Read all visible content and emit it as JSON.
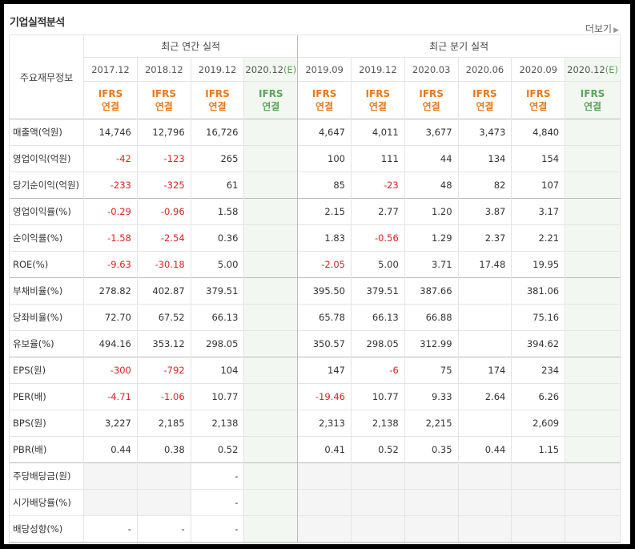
{
  "title": "기업실적분석",
  "more_label": "더보기",
  "header": {
    "row_label": "주요재무정보",
    "annual_label": "최근 연간 실적",
    "quarter_label": "최근 분기 실적",
    "annual_dates": [
      "2017.12",
      "2018.12",
      "2019.12",
      "2020.12"
    ],
    "quarter_dates": [
      "2019.09",
      "2019.12",
      "2020.03",
      "2020.06",
      "2020.09",
      "2020.12"
    ],
    "estimate_mark": "(E)",
    "ifrs_top": "IFRS",
    "ifrs_bottom": "연결"
  },
  "rows": [
    {
      "label": "매출액(억원)",
      "values": [
        "14,746",
        "12,796",
        "16,726",
        "",
        "4,647",
        "4,011",
        "3,677",
        "3,473",
        "4,840",
        ""
      ]
    },
    {
      "label": "영업이익(억원)",
      "values": [
        "-42",
        "-123",
        "265",
        "",
        "100",
        "111",
        "44",
        "134",
        "154",
        ""
      ]
    },
    {
      "label": "당기순이익(억원)",
      "values": [
        "-233",
        "-325",
        "61",
        "",
        "85",
        "-23",
        "48",
        "82",
        "107",
        ""
      ]
    },
    {
      "label": "영업이익률(%)",
      "values": [
        "-0.29",
        "-0.96",
        "1.58",
        "",
        "2.15",
        "2.77",
        "1.20",
        "3.87",
        "3.17",
        ""
      ]
    },
    {
      "label": "순이익률(%)",
      "values": [
        "-1.58",
        "-2.54",
        "0.36",
        "",
        "1.83",
        "-0.56",
        "1.29",
        "2.37",
        "2.21",
        ""
      ]
    },
    {
      "label": "ROE(%)",
      "values": [
        "-9.63",
        "-30.18",
        "5.00",
        "",
        "-2.05",
        "5.00",
        "3.71",
        "17.48",
        "19.95",
        ""
      ]
    },
    {
      "label": "부채비율(%)",
      "values": [
        "278.82",
        "402.87",
        "379.51",
        "",
        "395.50",
        "379.51",
        "387.66",
        "",
        "381.06",
        ""
      ]
    },
    {
      "label": "당좌비율(%)",
      "values": [
        "72.70",
        "67.52",
        "66.13",
        "",
        "65.78",
        "66.13",
        "66.88",
        "",
        "75.16",
        ""
      ]
    },
    {
      "label": "유보율(%)",
      "values": [
        "494.16",
        "353.12",
        "298.05",
        "",
        "350.57",
        "298.05",
        "312.99",
        "",
        "394.62",
        ""
      ]
    },
    {
      "label": "EPS(원)",
      "values": [
        "-300",
        "-792",
        "104",
        "",
        "147",
        "-6",
        "75",
        "174",
        "234",
        ""
      ]
    },
    {
      "label": "PER(배)",
      "values": [
        "-4.71",
        "-1.06",
        "10.77",
        "",
        "-19.46",
        "10.77",
        "9.33",
        "2.64",
        "6.26",
        ""
      ]
    },
    {
      "label": "BPS(원)",
      "values": [
        "3,227",
        "2,185",
        "2,138",
        "",
        "2,313",
        "2,138",
        "2,215",
        "",
        "2,609",
        ""
      ]
    },
    {
      "label": "PBR(배)",
      "values": [
        "0.44",
        "0.38",
        "0.52",
        "",
        "0.41",
        "0.52",
        "0.35",
        "0.44",
        "1.15",
        ""
      ]
    },
    {
      "label": "주당배당금(원)",
      "values": [
        "",
        "",
        "-",
        "",
        "",
        "",
        "",
        "",
        "",
        ""
      ]
    },
    {
      "label": "시가배당률(%)",
      "values": [
        "",
        "",
        "-",
        "",
        "",
        "",
        "",
        "",
        "",
        ""
      ]
    },
    {
      "label": "배당성향(%)",
      "values": [
        "-",
        "-",
        "-",
        "",
        "",
        "",
        "",
        "",
        "",
        ""
      ]
    }
  ],
  "colors": {
    "negative": "#dd2222",
    "ifrs": "#e8791d",
    "estimate": "#5aa55a"
  }
}
